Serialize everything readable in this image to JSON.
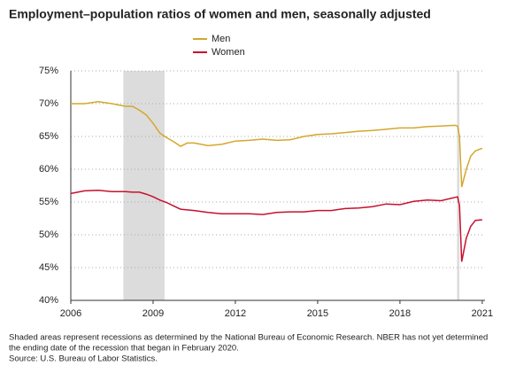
{
  "chart_data": {
    "type": "line",
    "title": "Employment–population ratios of women and men, seasonally adjusted",
    "notes": [
      "Shaded areas represent recessions as determined by the National Bureau of Economic Research. NBER has not yet determined",
      "the ending date of the recession that began in February 2020.",
      "Source: U.S. Bureau of Labor Statistics."
    ],
    "x": [
      2006.0,
      2006.5,
      2007.0,
      2007.5,
      2008.0,
      2008.25,
      2008.5,
      2008.75,
      2009.0,
      2009.25,
      2009.5,
      2009.75,
      2010.0,
      2010.25,
      2010.5,
      2011.0,
      2011.5,
      2012.0,
      2012.5,
      2013.0,
      2013.5,
      2014.0,
      2014.5,
      2015.0,
      2015.5,
      2016.0,
      2016.5,
      2017.0,
      2017.5,
      2018.0,
      2018.5,
      2019.0,
      2019.5,
      2020.0,
      2020.1,
      2020.17,
      2020.25,
      2020.42,
      2020.58,
      2020.75,
      2021.0
    ],
    "series": [
      {
        "name": "Men",
        "color": "#d4a72c",
        "values": [
          70.0,
          70.0,
          70.3,
          70.0,
          69.6,
          69.6,
          69.0,
          68.3,
          67.0,
          65.5,
          64.8,
          64.2,
          63.5,
          64.0,
          64.0,
          63.6,
          63.8,
          64.3,
          64.4,
          64.6,
          64.4,
          64.5,
          65.0,
          65.3,
          65.4,
          65.6,
          65.8,
          65.9,
          66.1,
          66.3,
          66.3,
          66.5,
          66.6,
          66.7,
          66.6,
          65.0,
          57.3,
          60.0,
          62.0,
          62.8,
          63.2
        ]
      },
      {
        "name": "Women",
        "color": "#c8102e",
        "values": [
          56.3,
          56.7,
          56.8,
          56.6,
          56.6,
          56.5,
          56.5,
          56.2,
          55.8,
          55.3,
          54.9,
          54.4,
          53.9,
          53.8,
          53.7,
          53.4,
          53.2,
          53.2,
          53.2,
          53.1,
          53.4,
          53.5,
          53.5,
          53.7,
          53.7,
          54.0,
          54.1,
          54.3,
          54.7,
          54.6,
          55.1,
          55.3,
          55.2,
          55.7,
          55.8,
          54.5,
          45.9,
          49.5,
          51.3,
          52.2,
          52.3
        ]
      }
    ],
    "recessions": [
      {
        "start": 2007.917,
        "end": 2009.417
      },
      {
        "start": 2020.083,
        "end": 2020.167
      }
    ],
    "xlim": [
      2006,
      2021.1
    ],
    "xticks": [
      2006,
      2009,
      2012,
      2015,
      2018,
      2021
    ],
    "ylim": [
      40,
      75
    ],
    "yticks": [
      {
        "value": 40,
        "label": "40%"
      },
      {
        "value": 45,
        "label": "45%"
      },
      {
        "value": 50,
        "label": "50%"
      },
      {
        "value": 55,
        "label": "55%"
      },
      {
        "value": 60,
        "label": "60%"
      },
      {
        "value": 65,
        "label": "65%"
      },
      {
        "value": 70,
        "label": "70%"
      },
      {
        "value": 75,
        "label": "75%"
      }
    ],
    "grid": true
  }
}
